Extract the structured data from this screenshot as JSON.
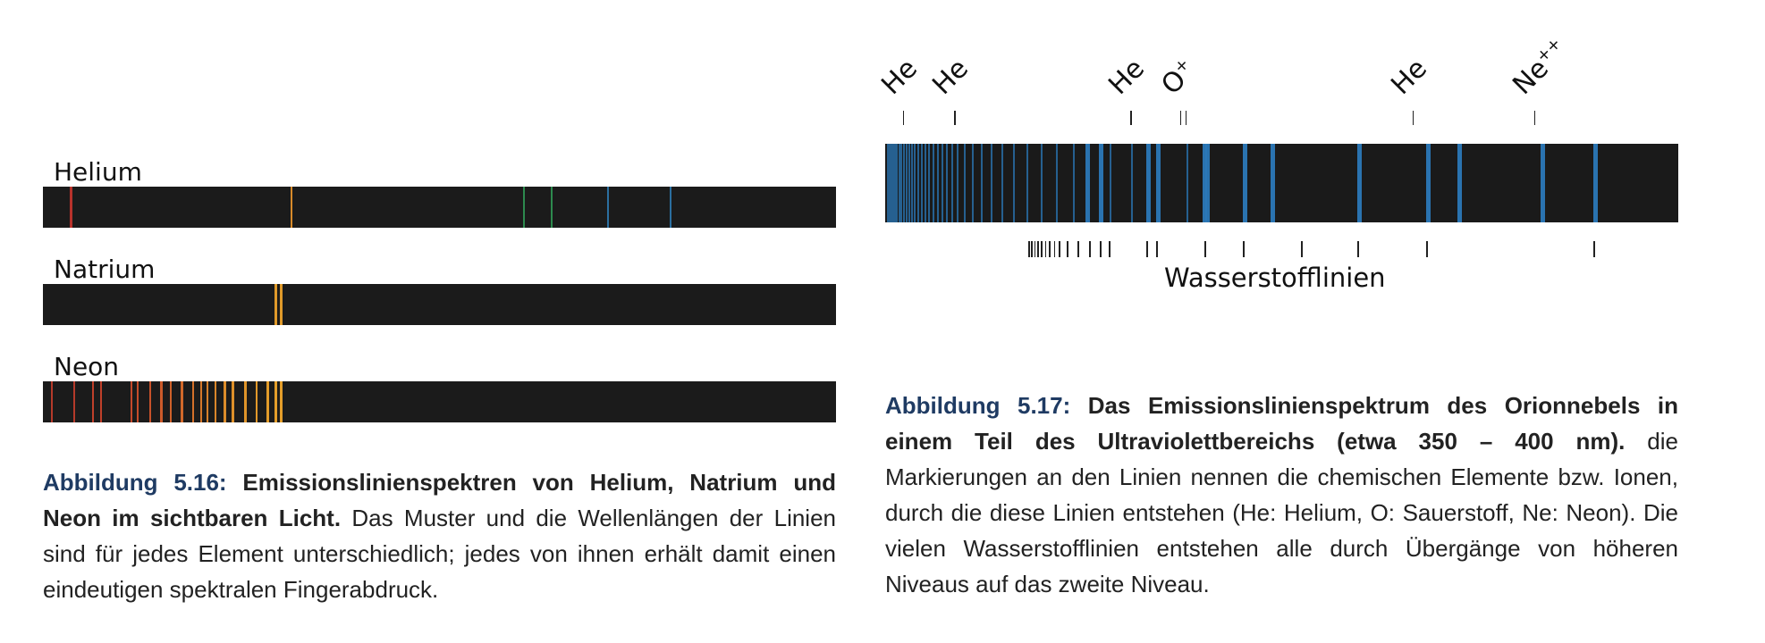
{
  "figure_516": {
    "spectra": [
      {
        "name": "Helium",
        "lines": [
          {
            "pos": 0.034,
            "color": "#b8322b"
          },
          {
            "pos": 0.312,
            "color": "#d88a2a"
          },
          {
            "pos": 0.605,
            "color": "#2d8a4e"
          },
          {
            "pos": 0.64,
            "color": "#2d8a4e"
          },
          {
            "pos": 0.711,
            "color": "#2b6fa0"
          },
          {
            "pos": 0.79,
            "color": "#2b6fa0"
          }
        ]
      },
      {
        "name": "Natrium",
        "lines": [
          {
            "pos": 0.292,
            "color": "#e09a2a"
          },
          {
            "pos": 0.299,
            "color": "#e09a2a"
          }
        ]
      },
      {
        "name": "Neon",
        "lines": [
          {
            "pos": 0.01,
            "color": "#b53a2a"
          },
          {
            "pos": 0.038,
            "color": "#b53a2a"
          },
          {
            "pos": 0.062,
            "color": "#c0402a"
          },
          {
            "pos": 0.072,
            "color": "#c0402a"
          },
          {
            "pos": 0.11,
            "color": "#c4482a"
          },
          {
            "pos": 0.118,
            "color": "#c64c2a"
          },
          {
            "pos": 0.134,
            "color": "#c8522a"
          },
          {
            "pos": 0.148,
            "color": "#cc5a2a"
          },
          {
            "pos": 0.16,
            "color": "#cf612a"
          },
          {
            "pos": 0.174,
            "color": "#d2682a"
          },
          {
            "pos": 0.188,
            "color": "#d4702a"
          },
          {
            "pos": 0.198,
            "color": "#d6782a"
          },
          {
            "pos": 0.206,
            "color": "#d8802a"
          },
          {
            "pos": 0.216,
            "color": "#da862a"
          },
          {
            "pos": 0.228,
            "color": "#dc8c2a"
          },
          {
            "pos": 0.238,
            "color": "#de902a"
          },
          {
            "pos": 0.254,
            "color": "#e0952a"
          },
          {
            "pos": 0.268,
            "color": "#e2992a"
          },
          {
            "pos": 0.282,
            "color": "#e39c2a"
          },
          {
            "pos": 0.292,
            "color": "#e49e2a"
          },
          {
            "pos": 0.299,
            "color": "#e49e2a"
          }
        ]
      }
    ],
    "caption": {
      "number": "Abbildung 5.16:",
      "bold_text": "Emissionslinienspektren von Helium, Natrium und Neon im sichtbaren Licht.",
      "text": "Das Muster und die Wellenlängen der Linien sind für jedes Element unterschiedlich; jedes von ihnen erhält damit einen eindeutigen spektralen Fingerabdruck."
    }
  },
  "figure_517": {
    "top_labels": [
      {
        "text": "He",
        "pos": 0.022
      },
      {
        "text": "He",
        "pos": 0.087
      },
      {
        "text": "He",
        "pos": 0.309
      },
      {
        "text": "O",
        "sup": "+",
        "pos": 0.375
      },
      {
        "text": "He",
        "pos": 0.665
      },
      {
        "text": "Ne",
        "sup": "++",
        "pos": 0.818
      }
    ],
    "line_color": "#2b78b8",
    "bottom_label": "Wasserstofflinien",
    "caption": {
      "number": "Abbildung 5.17:",
      "bold_text": "Das Emissionslinienspektrum des Orionnebels in einem Teil des Ultraviolettbereichs (etwa 350 – 400 nm).",
      "text": "die Markierungen an den Linien nennen die chemischen Elemente bzw. Ionen, durch die diese Linien entstehen (He: Helium, O: Sauerstoff, Ne: Neon). Die vielen Wasserstofflinien entstehen alle durch Übergänge von höheren Niveaus auf das zweite Niveau."
    }
  }
}
